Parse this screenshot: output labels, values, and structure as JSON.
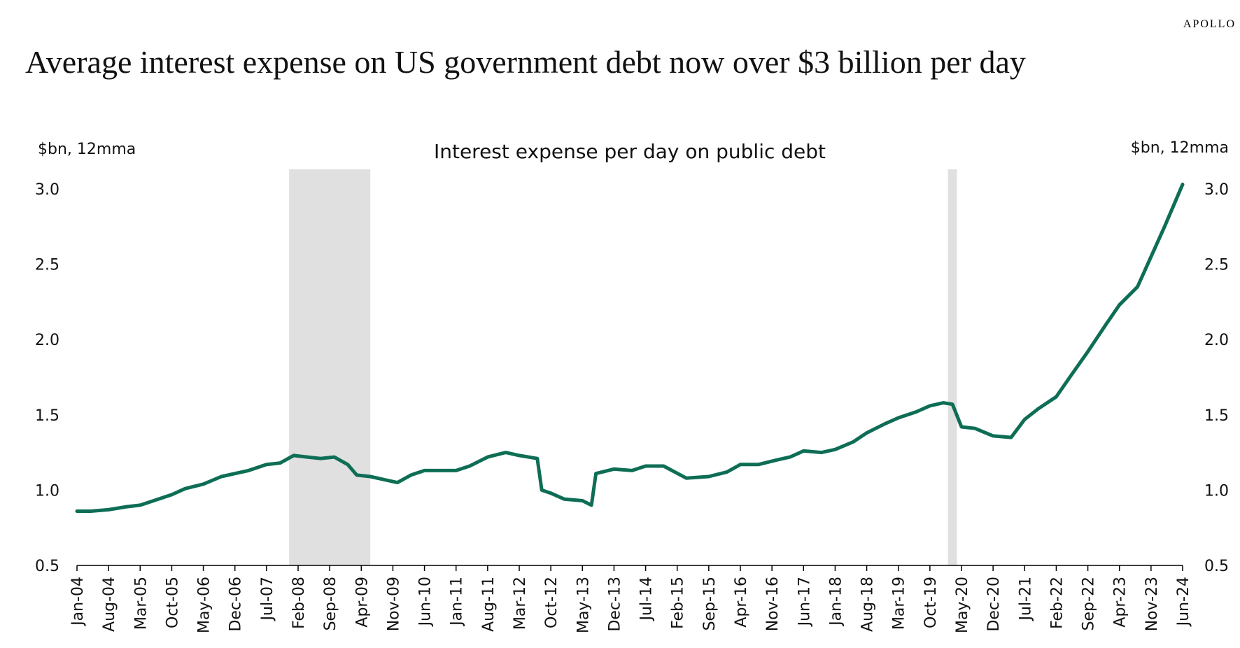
{
  "header": {
    "brand": "APOLLO",
    "title": "Average interest expense on US government debt now over $3 billion per day"
  },
  "chart_data": {
    "type": "line",
    "title": "Interest expense per day on public debt",
    "ylabel_left": "$bn, 12mma",
    "ylabel_right": "$bn, 12mma",
    "ylim": [
      0.5,
      3.0
    ],
    "yticks": [
      "0.5",
      "1.0",
      "1.5",
      "2.0",
      "2.5",
      "3.0"
    ],
    "xlim": [
      "2004-01",
      "2024-06"
    ],
    "xticks": [
      "Jan-04",
      "Aug-04",
      "Mar-05",
      "Oct-05",
      "May-06",
      "Dec-06",
      "Jul-07",
      "Feb-08",
      "Sep-08",
      "Apr-09",
      "Nov-09",
      "Jun-10",
      "Jan-11",
      "Aug-11",
      "Mar-12",
      "Oct-12",
      "May-13",
      "Dec-13",
      "Jul-14",
      "Feb-15",
      "Sep-15",
      "Apr-16",
      "Nov-16",
      "Jun-17",
      "Jan-18",
      "Aug-18",
      "Mar-19",
      "Oct-19",
      "May-20",
      "Dec-20",
      "Jul-21",
      "Feb-22",
      "Sep-22",
      "Apr-23",
      "Nov-23",
      "Jun-24"
    ],
    "recessions": [
      [
        "2007-12",
        "2009-06"
      ],
      [
        "2020-02",
        "2020-04"
      ]
    ],
    "grid": false,
    "colors": {
      "line": "#0e6e55",
      "recession": "#e0e0e0"
    },
    "series": [
      {
        "points": [
          [
            "2004-01",
            0.86
          ],
          [
            "2004-04",
            0.86
          ],
          [
            "2004-08",
            0.87
          ],
          [
            "2004-12",
            0.89
          ],
          [
            "2005-03",
            0.9
          ],
          [
            "2005-06",
            0.93
          ],
          [
            "2005-10",
            0.97
          ],
          [
            "2006-01",
            1.01
          ],
          [
            "2006-05",
            1.04
          ],
          [
            "2006-09",
            1.09
          ],
          [
            "2006-12",
            1.11
          ],
          [
            "2007-03",
            1.13
          ],
          [
            "2007-07",
            1.17
          ],
          [
            "2007-10",
            1.18
          ],
          [
            "2008-01",
            1.23
          ],
          [
            "2008-04",
            1.22
          ],
          [
            "2008-07",
            1.21
          ],
          [
            "2008-10",
            1.22
          ],
          [
            "2009-01",
            1.17
          ],
          [
            "2009-03",
            1.1
          ],
          [
            "2009-06",
            1.09
          ],
          [
            "2009-09",
            1.07
          ],
          [
            "2009-12",
            1.05
          ],
          [
            "2010-03",
            1.1
          ],
          [
            "2010-06",
            1.13
          ],
          [
            "2010-09",
            1.13
          ],
          [
            "2011-01",
            1.13
          ],
          [
            "2011-04",
            1.16
          ],
          [
            "2011-08",
            1.22
          ],
          [
            "2011-12",
            1.25
          ],
          [
            "2012-03",
            1.23
          ],
          [
            "2012-07",
            1.21
          ],
          [
            "2012-08",
            1.0
          ],
          [
            "2012-10",
            0.98
          ],
          [
            "2013-01",
            0.94
          ],
          [
            "2013-05",
            0.93
          ],
          [
            "2013-07",
            0.9
          ],
          [
            "2013-08",
            1.11
          ],
          [
            "2013-12",
            1.14
          ],
          [
            "2014-04",
            1.13
          ],
          [
            "2014-07",
            1.16
          ],
          [
            "2014-11",
            1.16
          ],
          [
            "2015-04",
            1.08
          ],
          [
            "2015-09",
            1.09
          ],
          [
            "2016-01",
            1.12
          ],
          [
            "2016-04",
            1.17
          ],
          [
            "2016-08",
            1.17
          ],
          [
            "2016-12",
            1.2
          ],
          [
            "2017-03",
            1.22
          ],
          [
            "2017-06",
            1.26
          ],
          [
            "2017-10",
            1.25
          ],
          [
            "2018-01",
            1.27
          ],
          [
            "2018-05",
            1.32
          ],
          [
            "2018-08",
            1.38
          ],
          [
            "2018-12",
            1.44
          ],
          [
            "2019-03",
            1.48
          ],
          [
            "2019-07",
            1.52
          ],
          [
            "2019-10",
            1.56
          ],
          [
            "2020-01",
            1.58
          ],
          [
            "2020-03",
            1.57
          ],
          [
            "2020-05",
            1.42
          ],
          [
            "2020-08",
            1.41
          ],
          [
            "2020-12",
            1.36
          ],
          [
            "2021-04",
            1.35
          ],
          [
            "2021-07",
            1.47
          ],
          [
            "2021-10",
            1.54
          ],
          [
            "2022-02",
            1.62
          ],
          [
            "2022-05",
            1.75
          ],
          [
            "2022-09",
            1.92
          ],
          [
            "2023-01",
            2.1
          ],
          [
            "2023-04",
            2.23
          ],
          [
            "2023-08",
            2.35
          ],
          [
            "2023-11",
            2.55
          ],
          [
            "2024-02",
            2.75
          ],
          [
            "2024-06",
            3.03
          ]
        ]
      }
    ]
  }
}
